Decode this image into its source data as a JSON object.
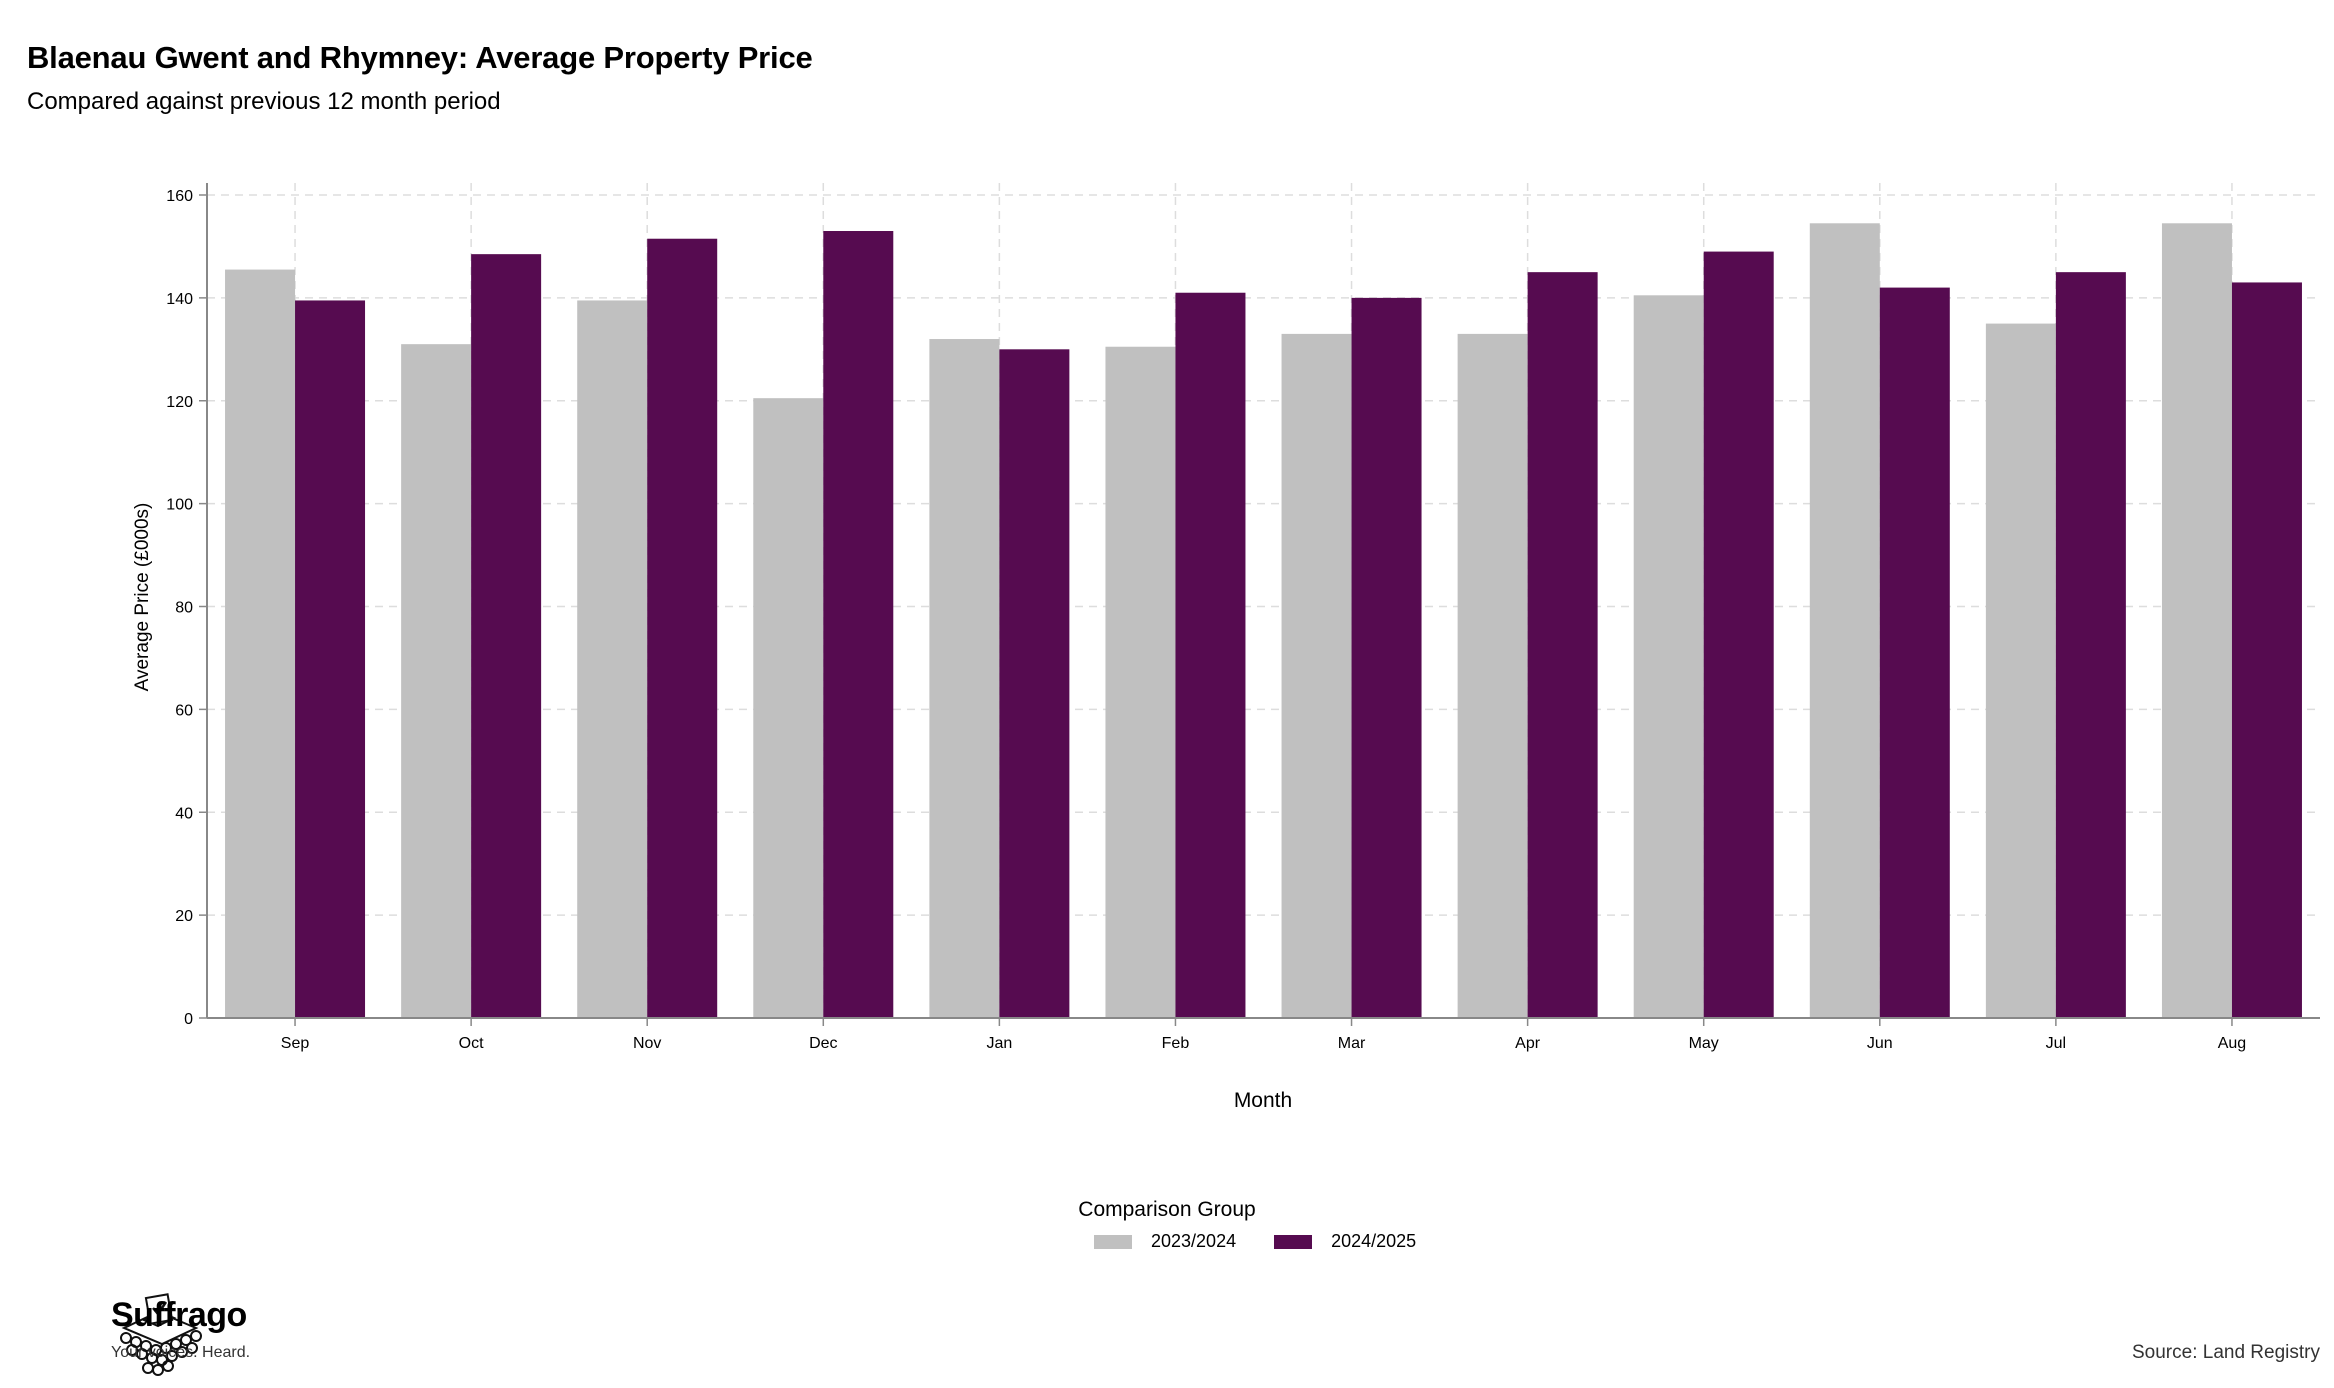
{
  "header": {
    "title": "Blaenau Gwent and Rhymney: Average Property Price",
    "subtitle": "Compared against previous 12 month period"
  },
  "legend": {
    "title": "Comparison Group",
    "items": [
      "2023/2024",
      "2024/2025"
    ]
  },
  "brand": {
    "name": "Suffrago",
    "tagline": "Your voices. Heard."
  },
  "footer": {
    "source": "Source: Land Registry"
  },
  "colors": {
    "series_2023": "#c0c0c0",
    "series_2024": "#560b50",
    "grid": "#dddddd",
    "axis": "#888888"
  },
  "chart_data": {
    "type": "bar",
    "xlabel": "Month",
    "ylabel": "Average Price (£000s)",
    "ylim": [
      0,
      160
    ],
    "yticks": [
      0,
      20,
      40,
      60,
      80,
      100,
      120,
      140,
      160
    ],
    "grid": true,
    "legend_position": "bottom",
    "categories": [
      "Sep",
      "Oct",
      "Nov",
      "Dec",
      "Jan",
      "Feb",
      "Mar",
      "Apr",
      "May",
      "Jun",
      "Jul",
      "Aug"
    ],
    "series": [
      {
        "name": "2023/2024",
        "values": [
          145.5,
          131,
          139.5,
          120.5,
          132,
          130.5,
          133,
          133,
          140.5,
          154.5,
          135,
          154.5
        ]
      },
      {
        "name": "2024/2025",
        "values": [
          139.5,
          148.5,
          151.5,
          153,
          130,
          141,
          140,
          145,
          149,
          142,
          145,
          143
        ]
      }
    ]
  }
}
